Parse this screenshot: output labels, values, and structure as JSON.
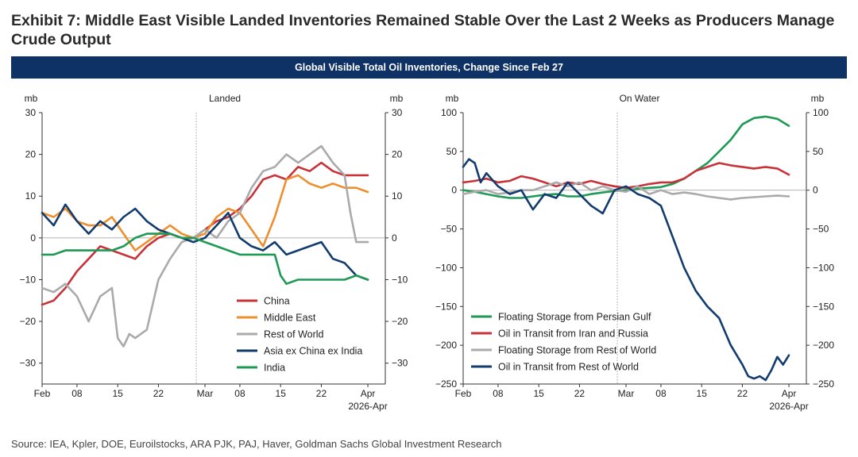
{
  "title": "Exhibit 7: Middle East Visible Landed Inventories Remained Stable Over the Last 2 Weeks as Producers Manage Crude Output",
  "banner": "Global Visible Total Oil Inventories, Change Since Feb 27",
  "source": "Source: IEA, Kpler, DOE, Euroilstocks, ARA PJK, PAJ, Haver, Goldman Sachs Global Investment Research",
  "chart_data": [
    {
      "type": "line",
      "title": "Landed",
      "ylabel": "mb",
      "ylabel_right": "mb",
      "ylim": [
        -35,
        30
      ],
      "yticks": [
        30,
        20,
        10,
        0,
        -10,
        -20,
        -30
      ],
      "xlim": [
        0,
        59
      ],
      "xticks": [
        0,
        6,
        13,
        20,
        28,
        34,
        41,
        48,
        56
      ],
      "xtick_labels": [
        "Feb",
        "08",
        "15",
        "22",
        "Mar",
        "08",
        "15",
        "22",
        "Apr"
      ],
      "x_footnote": "2026-Apr",
      "reference_line": {
        "x": 26.5,
        "style": "dotted"
      },
      "legend_position": "bottom-right",
      "series": [
        {
          "name": "China",
          "color": "#c8333a",
          "x": [
            0,
            2,
            4,
            6,
            8,
            10,
            12,
            14,
            16,
            18,
            20,
            22,
            24,
            26,
            28,
            30,
            32,
            34,
            36,
            38,
            40,
            42,
            44,
            46,
            48,
            50,
            52,
            54,
            56
          ],
          "y": [
            -16,
            -15,
            -12,
            -8,
            -5,
            -2,
            -3,
            -4,
            -5,
            -2,
            0,
            1,
            0,
            0,
            2,
            4,
            5,
            7,
            10,
            14,
            15,
            14,
            17,
            16,
            18,
            16,
            15,
            15,
            15
          ]
        },
        {
          "name": "Middle East",
          "color": "#ee8f2f",
          "x": [
            0,
            2,
            4,
            6,
            8,
            10,
            12,
            14,
            16,
            18,
            20,
            22,
            24,
            26,
            28,
            30,
            32,
            34,
            36,
            38,
            40,
            42,
            44,
            46,
            48,
            50,
            52,
            54,
            56
          ],
          "y": [
            6,
            5,
            7,
            4,
            3,
            3,
            5,
            1,
            -3,
            -1,
            1,
            3,
            1,
            0,
            1,
            5,
            7,
            6,
            2,
            -2,
            5,
            14,
            15,
            13,
            12,
            13,
            12,
            12,
            11
          ]
        },
        {
          "name": "Rest of World",
          "color": "#aaaaaa",
          "x": [
            0,
            2,
            4,
            6,
            8,
            10,
            12,
            13,
            14,
            15,
            16,
            18,
            20,
            22,
            24,
            26,
            28,
            30,
            32,
            34,
            36,
            38,
            40,
            42,
            44,
            46,
            48,
            50,
            52,
            53,
            54,
            55,
            56
          ],
          "y": [
            -12,
            -13,
            -11,
            -14,
            -20,
            -14,
            -12,
            -24,
            -26,
            -23,
            -24,
            -22,
            -10,
            -5,
            -1,
            0,
            2,
            0,
            4,
            6,
            12,
            16,
            17,
            20,
            18,
            20,
            22,
            18,
            15,
            6,
            -1,
            -1,
            -1
          ]
        },
        {
          "name": "Asia ex China ex India",
          "color": "#123c6e",
          "x": [
            0,
            2,
            4,
            6,
            8,
            10,
            12,
            14,
            16,
            18,
            20,
            22,
            24,
            26,
            28,
            30,
            32,
            34,
            36,
            38,
            40,
            42,
            44,
            46,
            48,
            50,
            52,
            54,
            56
          ],
          "y": [
            6,
            3,
            8,
            4,
            1,
            4,
            2,
            5,
            7,
            4,
            2,
            1,
            0,
            -1,
            0,
            3,
            6,
            0,
            -2,
            -3,
            -1,
            -4,
            -3,
            -2,
            -1,
            -5,
            -6,
            -9,
            -10
          ]
        },
        {
          "name": "India",
          "color": "#1e9a55",
          "x": [
            0,
            2,
            4,
            6,
            8,
            10,
            12,
            14,
            16,
            18,
            20,
            22,
            24,
            26,
            28,
            30,
            32,
            34,
            36,
            38,
            40,
            41,
            42,
            44,
            46,
            48,
            50,
            52,
            54,
            56
          ],
          "y": [
            -4,
            -4,
            -3,
            -3,
            -3,
            -3,
            -3,
            -2,
            0,
            1,
            1,
            1,
            0,
            0,
            -1,
            -2,
            -3,
            -4,
            -4,
            -4,
            -4,
            -9,
            -11,
            -10,
            -10,
            -10,
            -10,
            -10,
            -9,
            -10
          ]
        }
      ]
    },
    {
      "type": "line",
      "title": "On Water",
      "ylabel": "mb",
      "ylabel_right": "mb",
      "ylim": [
        -250,
        100
      ],
      "yticks": [
        100,
        50,
        0,
        -50,
        -100,
        -150,
        -200,
        -250
      ],
      "xlim": [
        0,
        59
      ],
      "xticks": [
        0,
        6,
        13,
        20,
        28,
        34,
        41,
        48,
        56
      ],
      "xtick_labels": [
        "Feb",
        "08",
        "15",
        "22",
        "Mar",
        "08",
        "15",
        "22",
        "Apr"
      ],
      "x_footnote": "2026-Apr",
      "reference_line": {
        "x": 26.5,
        "style": "dotted"
      },
      "legend_position": "bottom-left",
      "series": [
        {
          "name": "Floating Storage from Persian Gulf",
          "color": "#1e9a55",
          "x": [
            0,
            2,
            4,
            6,
            8,
            10,
            12,
            14,
            16,
            18,
            20,
            22,
            24,
            26,
            28,
            30,
            32,
            34,
            36,
            38,
            40,
            42,
            44,
            46,
            48,
            50,
            52,
            54,
            56
          ],
          "y": [
            0,
            -2,
            -5,
            -8,
            -10,
            -10,
            -8,
            -6,
            -5,
            -8,
            -8,
            -5,
            -3,
            -1,
            0,
            2,
            3,
            4,
            8,
            15,
            25,
            35,
            50,
            65,
            85,
            93,
            95,
            92,
            83
          ]
        },
        {
          "name": "Oil in Transit from Iran and Russia",
          "color": "#c8333a",
          "x": [
            0,
            2,
            4,
            6,
            8,
            10,
            12,
            14,
            16,
            18,
            20,
            22,
            24,
            26,
            28,
            30,
            32,
            34,
            36,
            38,
            40,
            42,
            44,
            46,
            48,
            50,
            52,
            54,
            56
          ],
          "y": [
            10,
            12,
            15,
            10,
            12,
            18,
            15,
            10,
            5,
            10,
            8,
            12,
            8,
            5,
            3,
            5,
            8,
            10,
            10,
            15,
            25,
            30,
            35,
            32,
            30,
            28,
            30,
            28,
            20
          ]
        },
        {
          "name": "Floating Storage from Rest of World",
          "color": "#aaaaaa",
          "x": [
            0,
            2,
            4,
            6,
            8,
            10,
            12,
            14,
            16,
            18,
            20,
            22,
            24,
            26,
            28,
            30,
            32,
            34,
            36,
            38,
            40,
            42,
            44,
            46,
            48,
            50,
            52,
            54,
            56
          ],
          "y": [
            -5,
            -2,
            0,
            -5,
            -3,
            0,
            0,
            5,
            10,
            5,
            10,
            0,
            5,
            0,
            -2,
            5,
            -5,
            0,
            -5,
            -3,
            -5,
            -8,
            -10,
            -12,
            -10,
            -9,
            -8,
            -7,
            -8
          ]
        },
        {
          "name": "Oil in Transit from Rest of World",
          "color": "#123c6e",
          "x": [
            0,
            1,
            2,
            3,
            4,
            6,
            8,
            10,
            12,
            14,
            16,
            18,
            20,
            22,
            24,
            26,
            28,
            30,
            32,
            34,
            36,
            38,
            40,
            42,
            44,
            46,
            48,
            49,
            50,
            51,
            52,
            53,
            54,
            55,
            56
          ],
          "y": [
            30,
            40,
            35,
            10,
            22,
            5,
            -5,
            0,
            -25,
            -5,
            -10,
            10,
            -5,
            -20,
            -30,
            0,
            5,
            -5,
            -10,
            -20,
            -60,
            -100,
            -130,
            -150,
            -165,
            -200,
            -225,
            -240,
            -243,
            -240,
            -245,
            -232,
            -215,
            -225,
            -213
          ]
        }
      ]
    }
  ]
}
